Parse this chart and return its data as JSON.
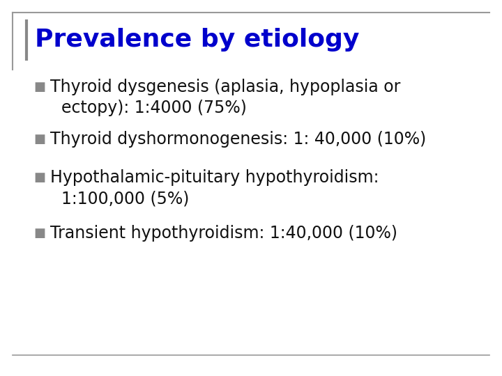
{
  "title": "Prevalence by etiology",
  "title_color": "#0000cc",
  "title_fontsize": 26,
  "background_color": "#ffffff",
  "slide_bg": "#ffffff",
  "bullet_color": "#888888",
  "text_color": "#111111",
  "bullet_char": "■",
  "bullets": [
    {
      "line1": "Thyroid dysgenesis (aplasia, hypoplasia or",
      "line2": "ectopy): 1:4000 (75%)"
    },
    {
      "line1": "Thyroid dyshormonogenesis: 1: 40,000 (10%)",
      "line2": null
    },
    {
      "line1": "Hypothalamic-pituitary hypothyroidism:",
      "line2": "1:100,000 (5%)"
    },
    {
      "line1": "Transient hypothyroidism: 1:40,000 (10%)",
      "line2": null
    }
  ],
  "text_fontsize": 17,
  "bullet_fontsize": 13,
  "font_family": "Georgia",
  "border_color": "#999999",
  "title_left_bar_color": "#888888"
}
